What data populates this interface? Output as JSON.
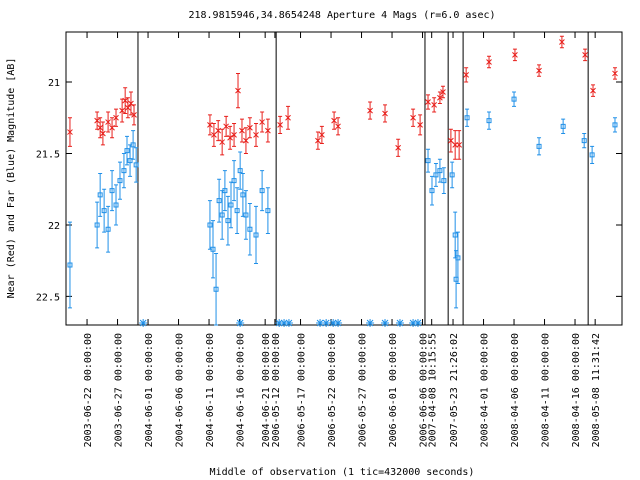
{
  "chart_data": {
    "type": "errorbar",
    "title": "218.9815946,34.8654248   Aperture 4 Mags (r=6.0 asec)",
    "y_label": "Near (Red) and Far (Blue) Magnitude [AB]",
    "x_label": "Middle of observation (1 tic=432000 seconds)",
    "ylim": [
      20.65,
      22.7
    ],
    "y_inverted": true,
    "yticks": [
      21,
      21.5,
      22,
      22.5
    ],
    "xlim": [
      -0.69,
      17.54
    ],
    "xticks": [
      {
        "value": 0,
        "label": "2003-06-22 00:00:00"
      },
      {
        "value": 1,
        "label": "2003-06-27 00:00:00"
      },
      {
        "value": 2,
        "label": "2004-06-01 00:00:00"
      },
      {
        "value": 3,
        "label": "2004-06-06 00:00:00"
      },
      {
        "value": 4,
        "label": "2004-06-11 00:00:00"
      },
      {
        "value": 5,
        "label": "2004-06-16 00:00:00"
      },
      {
        "value": 5.84,
        "label": "2004-06-21 00:00:00"
      },
      {
        "value": 6.16,
        "label": "2006-05-12 00:00:00"
      },
      {
        "value": 7,
        "label": "2006-05-17 00:00:00"
      },
      {
        "value": 8,
        "label": "2006-05-22 00:00:00"
      },
      {
        "value": 9,
        "label": "2006-05-27 00:00:00"
      },
      {
        "value": 10,
        "label": "2006-06-01 00:00:00"
      },
      {
        "value": 11,
        "label": "2006-06-06 00:00:00"
      },
      {
        "value": 11.3,
        "label": "2007-04-08 10:15:55"
      },
      {
        "value": 12,
        "label": "2007-05-23 21:26:02"
      },
      {
        "value": 13,
        "label": "2008-04-01 00:00:00"
      },
      {
        "value": 14,
        "label": "2008-04-06 00:00:00"
      },
      {
        "value": 15,
        "label": "2008-04-11 00:00:00"
      },
      {
        "value": 16,
        "label": "2008-04-16 00:00:00"
      },
      {
        "value": 16.66,
        "label": "2008-05-08 11:31:42"
      }
    ],
    "breaks": [
      1.67,
      6.2,
      11.08,
      11.84,
      12.33,
      16.43
    ],
    "flag_x": [
      1.84,
      5.02,
      6.3,
      6.46,
      6.62,
      7.64,
      7.84,
      8.07,
      8.23,
      9.28,
      9.77,
      10.26,
      10.69,
      10.85
    ],
    "flag_color": "#2090e8",
    "series": [
      {
        "color": "#e8201c",
        "marker": "cross",
        "x": [
          -0.56,
          0.33,
          0.43,
          0.52,
          0.69,
          0.82,
          0.95,
          1.15,
          1.25,
          1.34,
          1.44,
          1.54,
          4.03,
          4.16,
          4.3,
          4.43,
          4.56,
          4.69,
          4.82,
          4.95,
          5.08,
          5.21,
          5.34,
          5.54,
          5.74,
          5.93,
          6.33,
          6.59,
          7.57,
          7.7,
          8.1,
          8.23,
          9.28,
          9.77,
          10.2,
          10.69,
          10.92,
          11.18,
          11.38,
          11.57,
          11.67,
          11.93,
          12.07,
          12.2,
          12.43,
          13.18,
          14.03,
          14.82,
          15.57,
          16.33,
          16.59,
          17.31
        ],
        "values": [
          21.35,
          21.27,
          21.32,
          21.36,
          21.28,
          21.32,
          21.25,
          21.2,
          21.13,
          21.18,
          21.15,
          21.23,
          21.3,
          21.37,
          21.34,
          21.42,
          21.31,
          21.39,
          21.37,
          21.06,
          21.34,
          21.41,
          21.32,
          21.37,
          21.28,
          21.34,
          21.3,
          21.25,
          21.41,
          21.37,
          21.27,
          21.31,
          21.2,
          21.22,
          21.46,
          21.25,
          21.3,
          21.14,
          21.16,
          21.11,
          21.07,
          21.41,
          21.44,
          21.44,
          20.95,
          20.86,
          20.81,
          20.92,
          20.72,
          20.81,
          21.06,
          20.94
        ],
        "errors": [
          0.1,
          0.06,
          0.07,
          0.08,
          0.07,
          0.07,
          0.06,
          0.08,
          0.09,
          0.07,
          0.08,
          0.07,
          0.07,
          0.08,
          0.07,
          0.09,
          0.07,
          0.08,
          0.08,
          0.12,
          0.08,
          0.09,
          0.07,
          0.08,
          0.07,
          0.08,
          0.06,
          0.08,
          0.06,
          0.06,
          0.06,
          0.06,
          0.06,
          0.06,
          0.06,
          0.06,
          0.07,
          0.05,
          0.05,
          0.04,
          0.04,
          0.08,
          0.1,
          0.1,
          0.05,
          0.04,
          0.04,
          0.04,
          0.04,
          0.04,
          0.04,
          0.04
        ]
      },
      {
        "color": "#2090e8",
        "marker": "square",
        "x": [
          -0.56,
          0.33,
          0.43,
          0.56,
          0.69,
          0.82,
          0.95,
          1.08,
          1.21,
          1.31,
          1.41,
          1.51,
          1.61,
          4.03,
          4.13,
          4.23,
          4.33,
          4.43,
          4.52,
          4.62,
          4.72,
          4.82,
          4.92,
          5.02,
          5.11,
          5.21,
          5.34,
          5.54,
          5.74,
          5.93,
          11.18,
          11.31,
          11.44,
          11.57,
          11.7,
          11.97,
          12.07,
          12.1,
          12.16,
          12.46,
          13.18,
          14.0,
          14.82,
          15.61,
          16.3,
          16.56,
          17.31
        ],
        "values": [
          22.28,
          22.0,
          21.79,
          21.9,
          22.03,
          21.76,
          21.86,
          21.69,
          21.62,
          21.48,
          21.55,
          21.44,
          21.58,
          22.0,
          22.17,
          22.45,
          21.83,
          21.93,
          21.76,
          21.97,
          21.86,
          21.69,
          21.9,
          21.62,
          21.79,
          21.93,
          22.03,
          22.07,
          21.76,
          21.9,
          21.55,
          21.76,
          21.65,
          21.62,
          21.69,
          21.65,
          22.07,
          22.38,
          22.23,
          21.25,
          21.27,
          21.12,
          21.45,
          21.31,
          21.41,
          21.51,
          21.3
        ],
        "errors": [
          0.3,
          0.16,
          0.15,
          0.15,
          0.16,
          0.14,
          0.14,
          0.13,
          0.12,
          0.1,
          0.11,
          0.1,
          0.12,
          0.17,
          0.2,
          0.25,
          0.15,
          0.17,
          0.14,
          0.17,
          0.16,
          0.14,
          0.16,
          0.13,
          0.15,
          0.17,
          0.18,
          0.2,
          0.14,
          0.16,
          0.08,
          0.1,
          0.08,
          0.08,
          0.09,
          0.09,
          0.16,
          0.2,
          0.18,
          0.06,
          0.06,
          0.05,
          0.06,
          0.05,
          0.05,
          0.06,
          0.05
        ]
      }
    ]
  }
}
